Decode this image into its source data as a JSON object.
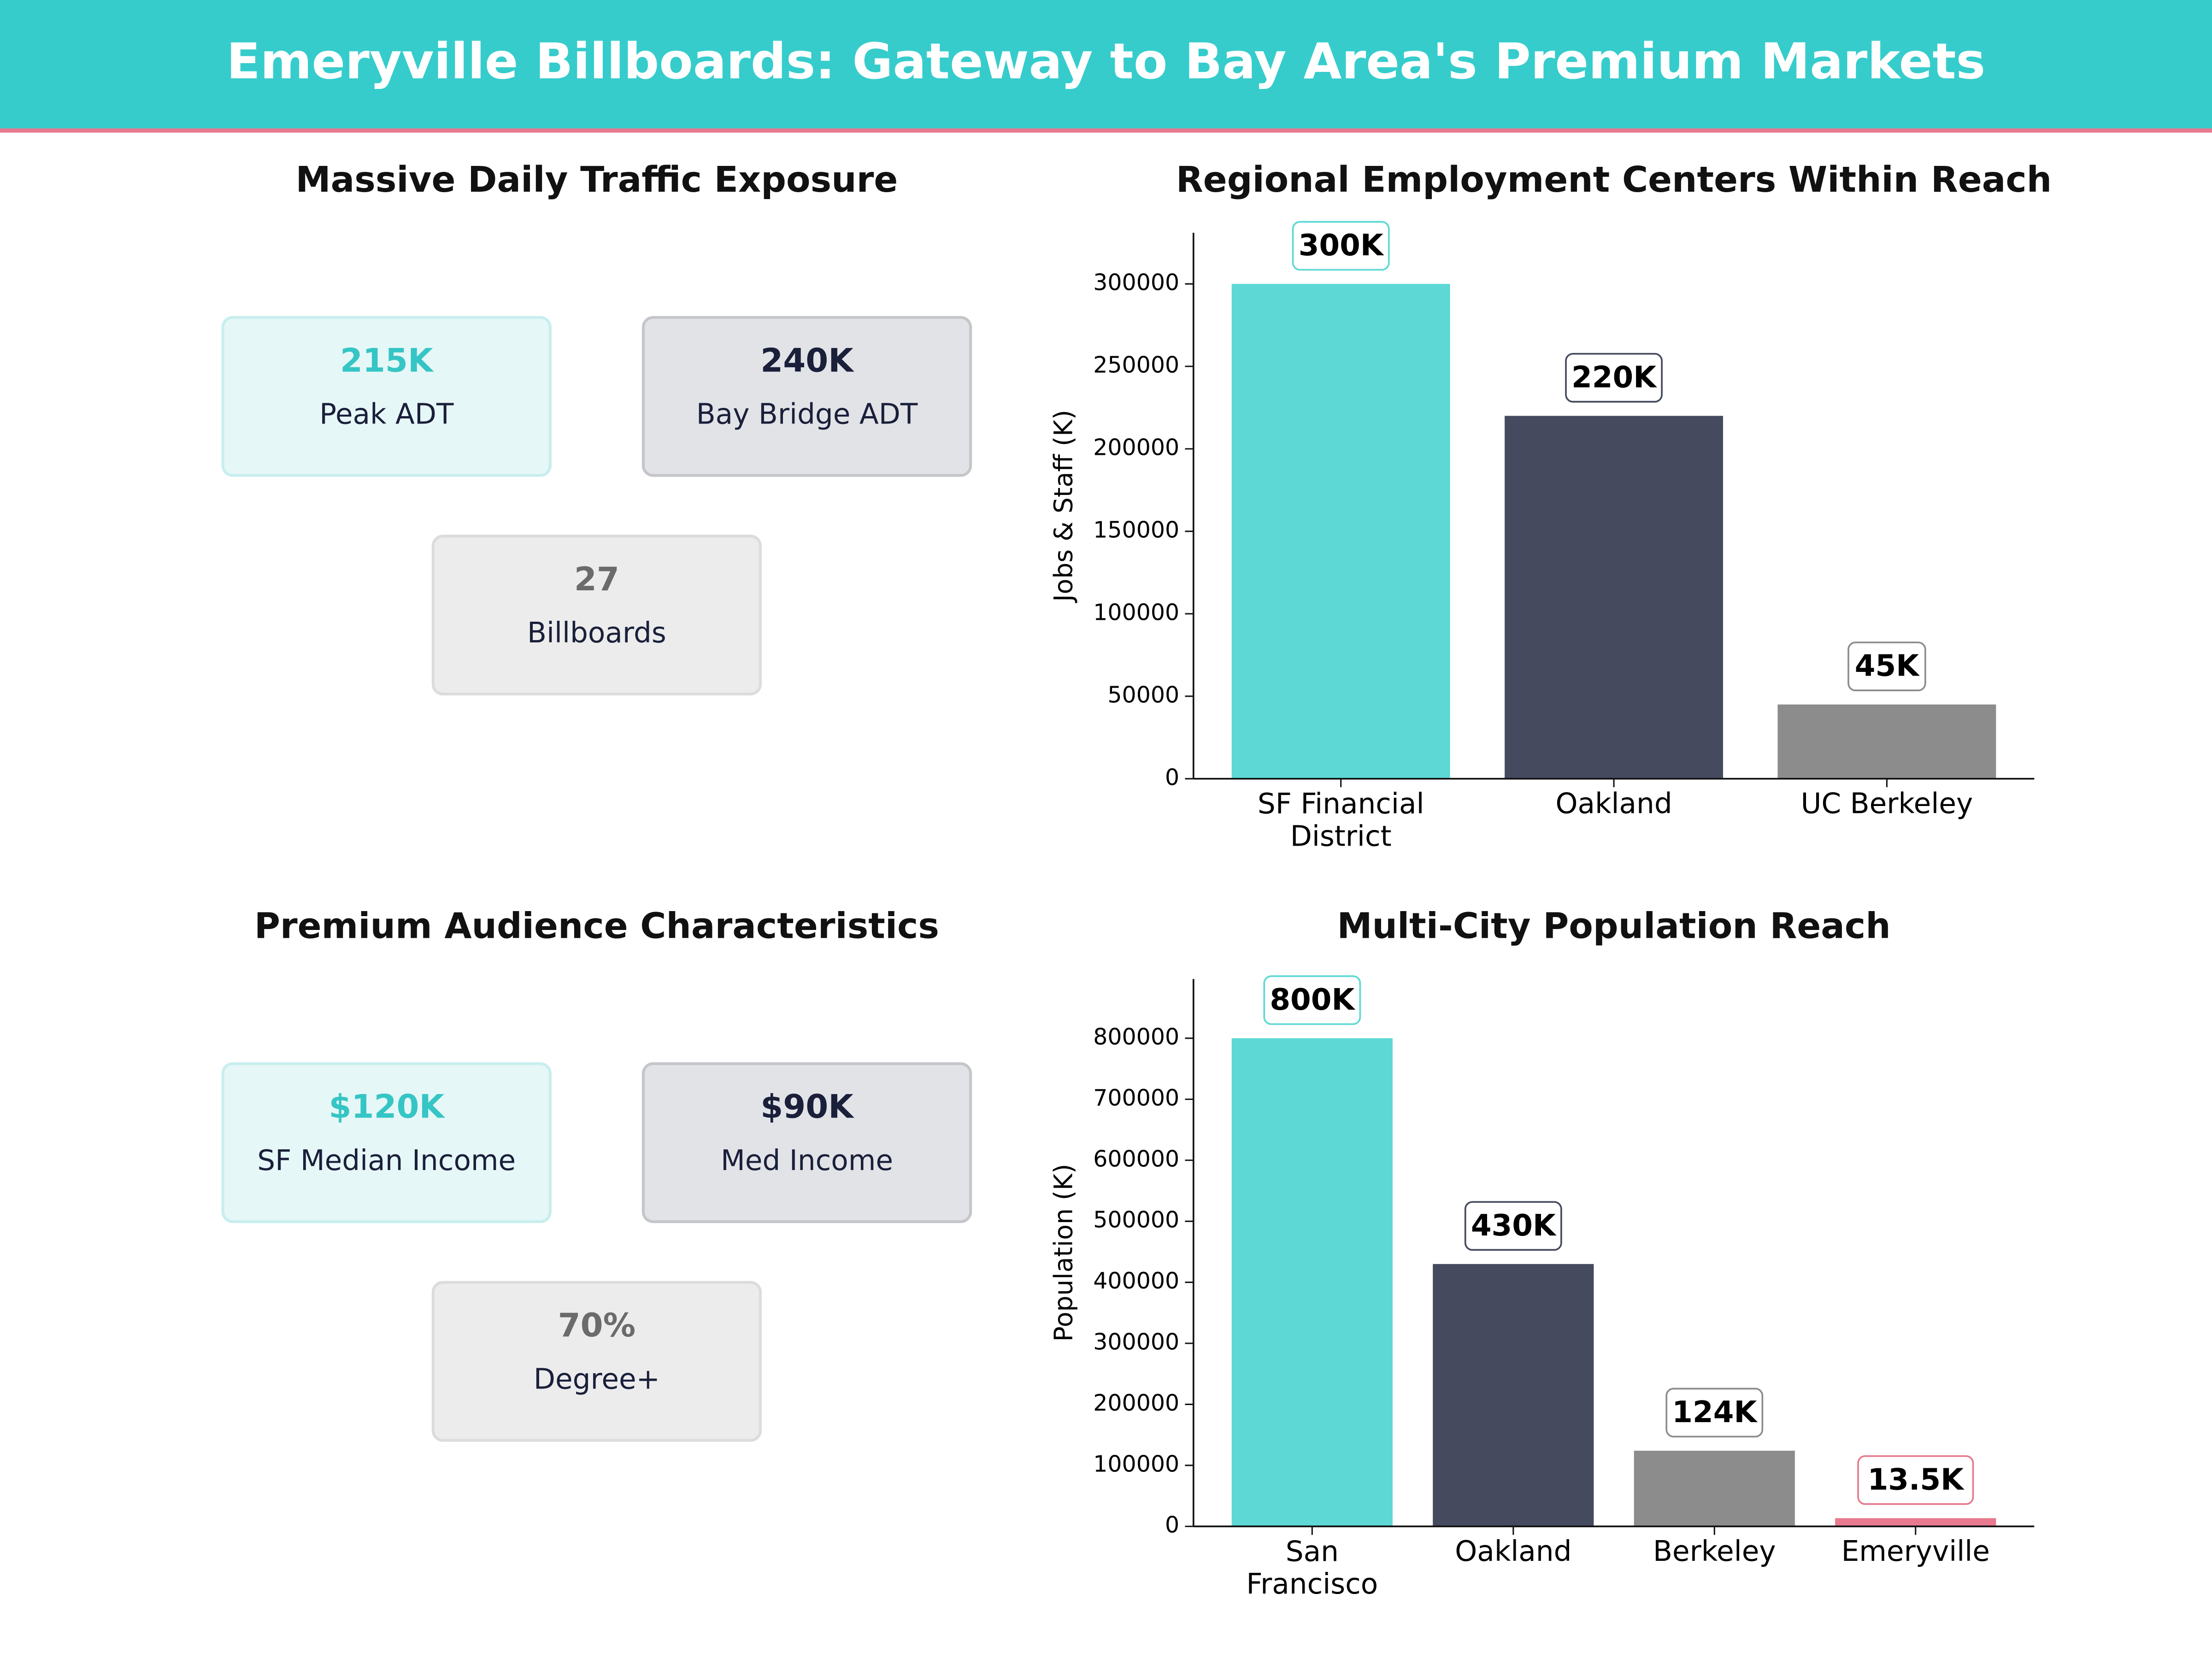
{
  "header": {
    "title": "Emeryville Billboards: Gateway to Bay Area's Premium Markets"
  },
  "panels": [
    {
      "title": "Massive Daily Traffic Exposure",
      "cards": [
        {
          "value": "215K",
          "label": "Peak ADT"
        },
        {
          "value": "240K",
          "label": "Bay Bridge  ADT"
        },
        {
          "value": "27",
          "label": "Billboards"
        }
      ]
    },
    {
      "title": "Premium Audience Characteristics",
      "cards": [
        {
          "value": "$120K",
          "label": "SF Median Income"
        },
        {
          "value": "$90K",
          "label": "Med Income"
        },
        {
          "value": "70%",
          "label": "Degree+"
        }
      ]
    }
  ],
  "chart_data": [
    {
      "type": "bar",
      "title": "Regional Employment Centers Within Reach",
      "y_label": "Jobs & Staff (K)",
      "categories": [
        "SF Financial\nDistrict",
        "Oakland",
        "UC Berkeley"
      ],
      "values": [
        300000,
        220000,
        45000
      ],
      "value_labels": [
        "300K",
        "220K",
        "45K"
      ],
      "colors": [
        "#5dd8d5",
        "#454a5f",
        "#8c8c8c"
      ],
      "ylim": [
        0,
        331000
      ],
      "yticks": [
        0,
        50000,
        100000,
        150000,
        200000,
        250000,
        300000
      ]
    },
    {
      "type": "bar",
      "title": "Multi-City Population Reach",
      "y_label": "Population (K)",
      "categories": [
        "San\nFrancisco",
        "Oakland",
        "Berkeley",
        "Emeryville"
      ],
      "values": [
        800000,
        430000,
        124000,
        13500
      ],
      "value_labels": [
        "800K",
        "430K",
        "124K",
        "13.5K"
      ],
      "colors": [
        "#5dd8d5",
        "#454a5f",
        "#8c8c8c",
        "#e8798e"
      ],
      "ylim": [
        0,
        897000
      ],
      "yticks": [
        0,
        100000,
        200000,
        300000,
        400000,
        500000,
        600000,
        700000,
        800000
      ]
    }
  ]
}
